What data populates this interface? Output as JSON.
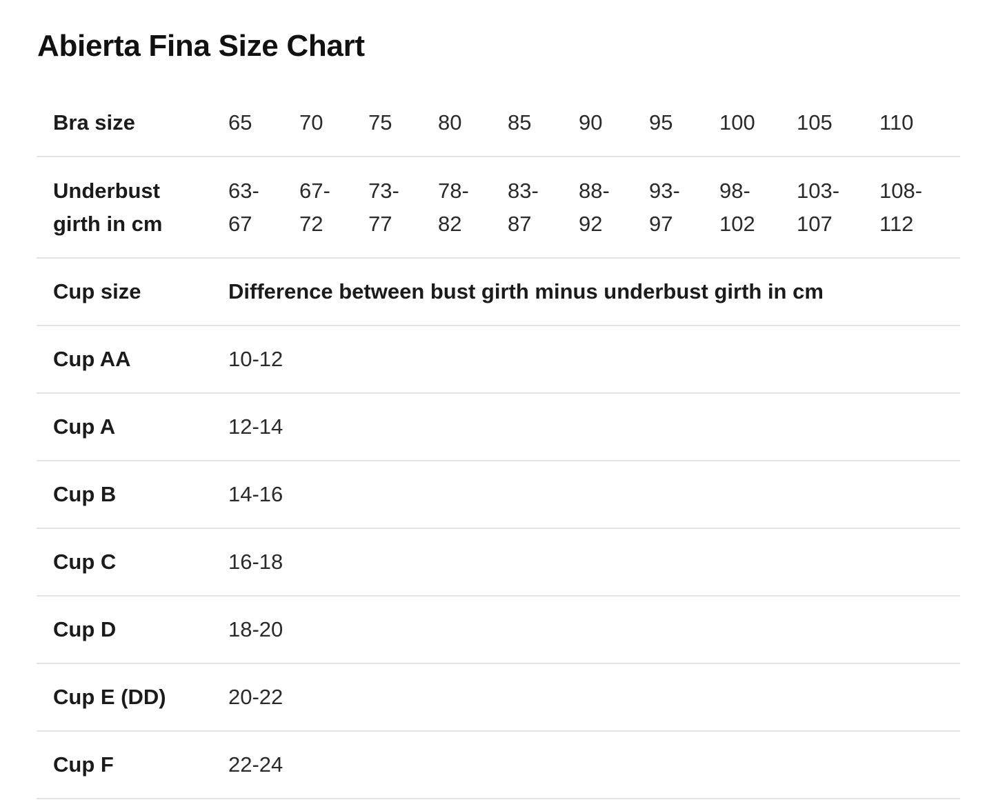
{
  "title": "Abierta Fina Size Chart",
  "size_row": {
    "label": "Bra size",
    "values": [
      "65",
      "70",
      "75",
      "80",
      "85",
      "90",
      "95",
      "100",
      "105",
      "110"
    ]
  },
  "girth_row": {
    "label_line1": "Underbust",
    "label_line2": "girth in cm",
    "values": [
      [
        "63-",
        "67"
      ],
      [
        "67-",
        "72"
      ],
      [
        "73-",
        "77"
      ],
      [
        "78-",
        "82"
      ],
      [
        "83-",
        "87"
      ],
      [
        "88-",
        "92"
      ],
      [
        "93-",
        "97"
      ],
      [
        "98-",
        "102"
      ],
      [
        "103-",
        "107"
      ],
      [
        "108-",
        "112"
      ]
    ]
  },
  "cup_header": {
    "label": "Cup size",
    "description": "Difference between bust girth minus underbust girth in cm"
  },
  "cups": [
    {
      "label": "Cup AA",
      "range": "10-12"
    },
    {
      "label": "Cup A",
      "range": "12-14"
    },
    {
      "label": "Cup B",
      "range": "14-16"
    },
    {
      "label": "Cup C",
      "range": "16-18"
    },
    {
      "label": "Cup D",
      "range": "18-20"
    },
    {
      "label": "Cup E (DD)",
      "range": "20-22"
    },
    {
      "label": "Cup F",
      "range": "22-24"
    }
  ]
}
